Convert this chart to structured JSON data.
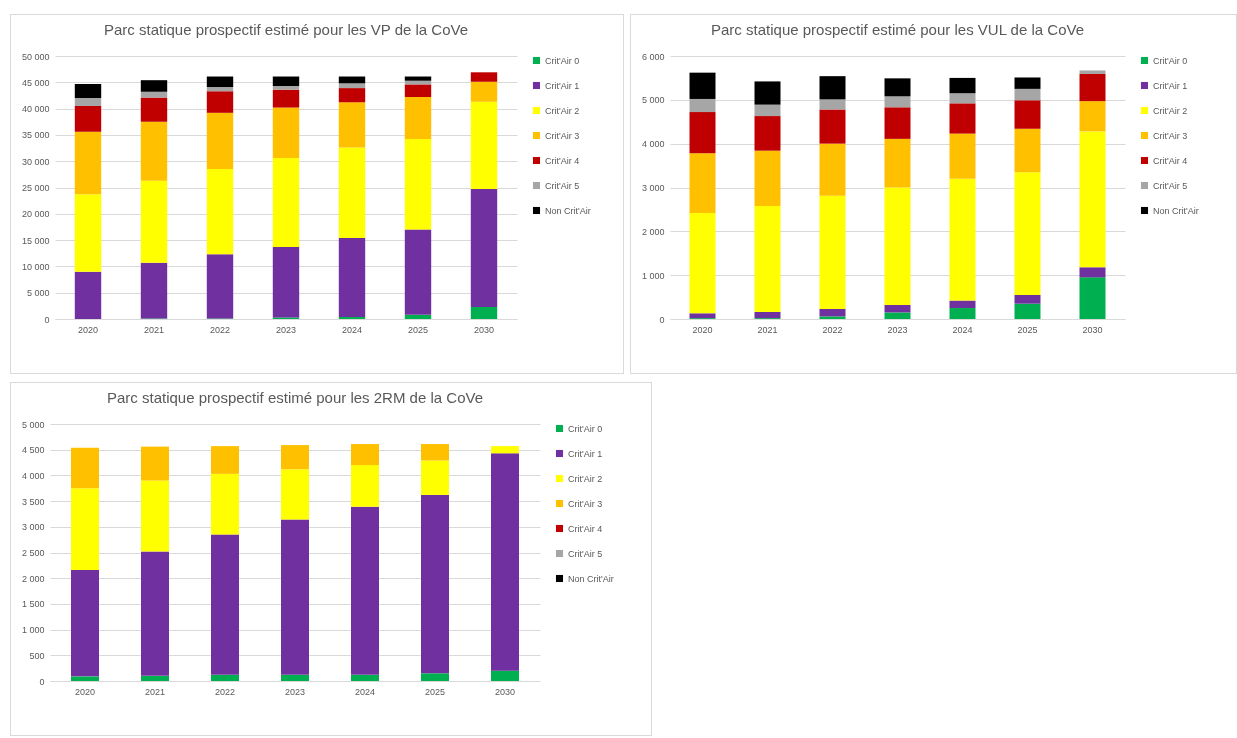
{
  "chart_data": [
    {
      "type": "bar",
      "title": "Parc statique prospectif estimé pour les VP de la CoVe",
      "categories": [
        "2020",
        "2021",
        "2022",
        "2023",
        "2024",
        "2025",
        "2030"
      ],
      "stacked": true,
      "grid": "y",
      "legend": "right",
      "ylim": [
        0,
        50000
      ],
      "yticks": [
        {
          "value": 0,
          "label": "0"
        },
        {
          "value": 5000,
          "label": "5 000"
        },
        {
          "value": 10000,
          "label": "10 000"
        },
        {
          "value": 15000,
          "label": "15 000"
        },
        {
          "value": 20000,
          "label": "20 000"
        },
        {
          "value": 25000,
          "label": "25 000"
        },
        {
          "value": 30000,
          "label": "30 000"
        },
        {
          "value": 35000,
          "label": "35 000"
        },
        {
          "value": 40000,
          "label": "40 000"
        },
        {
          "value": 45000,
          "label": "45 000"
        },
        {
          "value": 50000,
          "label": "50 000"
        }
      ],
      "series": [
        {
          "name": "Crit'Air 0",
          "color": "#00b050",
          "values": [
            0,
            100,
            100,
            300,
            400,
            800,
            2300
          ]
        },
        {
          "name": "Crit'Air 1",
          "color": "#7030a0",
          "values": [
            9000,
            10600,
            12200,
            13400,
            15000,
            16200,
            22400
          ]
        },
        {
          "name": "Crit'Air 2",
          "color": "#ffff00",
          "values": [
            14700,
            15600,
            16200,
            16900,
            17200,
            17200,
            16600
          ]
        },
        {
          "name": "Crit'Air 3",
          "color": "#ffc000",
          "values": [
            11900,
            11200,
            10700,
            9600,
            8600,
            8000,
            3800
          ]
        },
        {
          "name": "Crit'Air 4",
          "color": "#c00000",
          "values": [
            4900,
            4600,
            4100,
            3400,
            2700,
            2400,
            1800
          ]
        },
        {
          "name": "Crit'Air 5",
          "color": "#a6a6a6",
          "values": [
            1500,
            1100,
            800,
            700,
            900,
            700,
            null
          ]
        },
        {
          "name": "Non Crit'Air",
          "color": "#000000",
          "values": [
            2700,
            2200,
            2000,
            1800,
            1300,
            800,
            0
          ]
        }
      ]
    },
    {
      "type": "bar",
      "title": "Parc statique prospectif estimé pour les VUL de la CoVe",
      "categories": [
        "2020",
        "2021",
        "2022",
        "2023",
        "2024",
        "2025",
        "2030"
      ],
      "stacked": true,
      "grid": "y",
      "legend": "right",
      "ylim": [
        0,
        6000
      ],
      "yticks": [
        {
          "value": 0,
          "label": "0"
        },
        {
          "value": 1000,
          "label": "1 000"
        },
        {
          "value": 2000,
          "label": "2 000"
        },
        {
          "value": 3000,
          "label": "3 000"
        },
        {
          "value": 4000,
          "label": "4 000"
        },
        {
          "value": 5000,
          "label": "5 000"
        },
        {
          "value": 6000,
          "label": "6 000"
        }
      ],
      "series": [
        {
          "name": "Crit'Air 0",
          "color": "#00b050",
          "values": [
            20,
            20,
            60,
            150,
            250,
            350,
            950
          ]
        },
        {
          "name": "Crit'Air 1",
          "color": "#7030a0",
          "values": [
            110,
            140,
            170,
            170,
            170,
            200,
            230
          ]
        },
        {
          "name": "Crit'Air 2",
          "color": "#ffff00",
          "values": [
            2290,
            2420,
            2580,
            2680,
            2780,
            2800,
            3100
          ]
        },
        {
          "name": "Crit'Air 3",
          "color": "#ffc000",
          "values": [
            1360,
            1260,
            1190,
            1110,
            1030,
            990,
            690
          ]
        },
        {
          "name": "Crit'Air 4",
          "color": "#c00000",
          "values": [
            940,
            790,
            780,
            720,
            690,
            650,
            620
          ]
        },
        {
          "name": "Crit'Air 5",
          "color": "#a6a6a6",
          "values": [
            300,
            260,
            230,
            250,
            230,
            260,
            80
          ]
        },
        {
          "name": "Non Crit'Air",
          "color": "#000000",
          "values": [
            600,
            530,
            530,
            410,
            350,
            260,
            0
          ]
        }
      ]
    },
    {
      "type": "bar",
      "title": "Parc statique prospectif estimé pour les 2RM de la CoVe",
      "categories": [
        "2020",
        "2021",
        "2022",
        "2023",
        "2024",
        "2025",
        "2030"
      ],
      "stacked": true,
      "grid": "y",
      "legend": "right",
      "ylim": [
        0,
        5000
      ],
      "yticks": [
        {
          "value": 0,
          "label": "0"
        },
        500,
        {
          "value": 1000,
          "label": "1 000"
        },
        {
          "value": 1500,
          "label": "1 500"
        },
        {
          "value": 2000,
          "label": "2 000"
        },
        {
          "value": 2500,
          "label": "2 500"
        },
        {
          "value": 3000,
          "label": "3 000"
        },
        {
          "value": 3500,
          "label": "3 500"
        },
        {
          "value": 4000,
          "label": "4 000"
        },
        {
          "value": 4500,
          "label": "4 500"
        },
        {
          "value": 5000,
          "label": "5 000"
        }
      ],
      "series": [
        {
          "name": "Crit'Air 0",
          "color": "#00b050",
          "values": [
            90,
            100,
            120,
            120,
            120,
            150,
            200
          ]
        },
        {
          "name": "Crit'Air 1",
          "color": "#7030a0",
          "values": [
            2070,
            2420,
            2730,
            3020,
            3270,
            3470,
            4230
          ]
        },
        {
          "name": "Crit'Air 2",
          "color": "#ffff00",
          "values": [
            1590,
            1380,
            1180,
            980,
            810,
            670,
            140
          ]
        },
        {
          "name": "Crit'Air 3",
          "color": "#ffc000",
          "values": [
            790,
            660,
            540,
            470,
            410,
            320,
            0
          ]
        },
        {
          "name": "Crit'Air 4",
          "color": "#c00000",
          "values": [
            0,
            0,
            0,
            0,
            0,
            0,
            0
          ]
        },
        {
          "name": "Crit'Air 5",
          "color": "#a6a6a6",
          "values": [
            0,
            0,
            0,
            0,
            0,
            0,
            0
          ]
        },
        {
          "name": "Non Crit'Air",
          "color": "#000000",
          "values": [
            0,
            0,
            0,
            0,
            0,
            0,
            0
          ]
        }
      ]
    }
  ]
}
